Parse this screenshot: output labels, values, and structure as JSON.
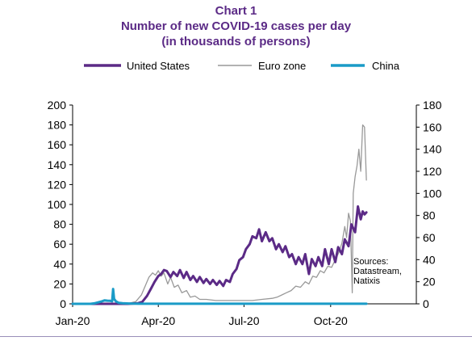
{
  "chart_data": {
    "type": "line",
    "title": "Chart 1",
    "subtitle": "Number of new COVID-19 cases per day",
    "subtitle2": "(in thousands of persons)",
    "legend_position": "top",
    "x_ticks": [
      "Jan-20",
      "Apr-20",
      "Jul-20",
      "Oct-20"
    ],
    "x_tick_dates": [
      "2020-01-01",
      "2020-04-01",
      "2020-07-01",
      "2020-10-01"
    ],
    "x_range": [
      "2020-01-01",
      "2020-12-31"
    ],
    "y_left": {
      "min": 0,
      "max": 200,
      "ticks": [
        0,
        20,
        40,
        60,
        80,
        100,
        120,
        140,
        160,
        180,
        200
      ]
    },
    "y_right": {
      "min": 0,
      "max": 180,
      "ticks": [
        0,
        20,
        40,
        60,
        80,
        100,
        120,
        140,
        160,
        180
      ]
    },
    "annotation": [
      "Sources:",
      "Datastream,",
      "Natixis"
    ],
    "series": [
      {
        "name": "United States",
        "axis": "left",
        "color": "#5b2a86",
        "points": [
          [
            "2020-01-01",
            0
          ],
          [
            "2020-02-15",
            0
          ],
          [
            "2020-02-29",
            0
          ],
          [
            "2020-03-10",
            0.5
          ],
          [
            "2020-03-15",
            2
          ],
          [
            "2020-03-20",
            8
          ],
          [
            "2020-03-24",
            15
          ],
          [
            "2020-03-28",
            22
          ],
          [
            "2020-04-01",
            28
          ],
          [
            "2020-04-04",
            30
          ],
          [
            "2020-04-07",
            34
          ],
          [
            "2020-04-10",
            33
          ],
          [
            "2020-04-14",
            27
          ],
          [
            "2020-04-17",
            32
          ],
          [
            "2020-04-21",
            28
          ],
          [
            "2020-04-24",
            34
          ],
          [
            "2020-04-28",
            26
          ],
          [
            "2020-05-01",
            32
          ],
          [
            "2020-05-05",
            24
          ],
          [
            "2020-05-08",
            28
          ],
          [
            "2020-05-12",
            22
          ],
          [
            "2020-05-15",
            27
          ],
          [
            "2020-05-19",
            21
          ],
          [
            "2020-05-22",
            25
          ],
          [
            "2020-05-26",
            20
          ],
          [
            "2020-05-29",
            24
          ],
          [
            "2020-06-02",
            19
          ],
          [
            "2020-06-05",
            23
          ],
          [
            "2020-06-09",
            18
          ],
          [
            "2020-06-12",
            24
          ],
          [
            "2020-06-16",
            22
          ],
          [
            "2020-06-19",
            30
          ],
          [
            "2020-06-23",
            35
          ],
          [
            "2020-06-26",
            44
          ],
          [
            "2020-06-30",
            47
          ],
          [
            "2020-07-03",
            55
          ],
          [
            "2020-07-07",
            60
          ],
          [
            "2020-07-10",
            68
          ],
          [
            "2020-07-14",
            66
          ],
          [
            "2020-07-17",
            75
          ],
          [
            "2020-07-20",
            63
          ],
          [
            "2020-07-24",
            72
          ],
          [
            "2020-07-28",
            63
          ],
          [
            "2020-07-31",
            66
          ],
          [
            "2020-08-04",
            55
          ],
          [
            "2020-08-07",
            60
          ],
          [
            "2020-08-11",
            52
          ],
          [
            "2020-08-14",
            58
          ],
          [
            "2020-08-18",
            47
          ],
          [
            "2020-08-21",
            50
          ],
          [
            "2020-08-25",
            40
          ],
          [
            "2020-08-28",
            47
          ],
          [
            "2020-09-01",
            40
          ],
          [
            "2020-09-04",
            50
          ],
          [
            "2020-09-08",
            30
          ],
          [
            "2020-09-11",
            45
          ],
          [
            "2020-09-15",
            38
          ],
          [
            "2020-09-18",
            47
          ],
          [
            "2020-09-22",
            38
          ],
          [
            "2020-09-25",
            55
          ],
          [
            "2020-09-29",
            40
          ],
          [
            "2020-10-02",
            55
          ],
          [
            "2020-10-06",
            42
          ],
          [
            "2020-10-09",
            57
          ],
          [
            "2020-10-13",
            50
          ],
          [
            "2020-10-16",
            65
          ],
          [
            "2020-10-20",
            58
          ],
          [
            "2020-10-23",
            80
          ],
          [
            "2020-10-27",
            72
          ],
          [
            "2020-10-30",
            98
          ],
          [
            "2020-11-02",
            85
          ],
          [
            "2020-11-04",
            93
          ],
          [
            "2020-11-06",
            90
          ],
          [
            "2020-11-08",
            92
          ]
        ]
      },
      {
        "name": "Euro zone",
        "axis": "right",
        "color": "#999999",
        "points": [
          [
            "2020-01-01",
            0
          ],
          [
            "2020-02-20",
            0
          ],
          [
            "2020-03-01",
            0.5
          ],
          [
            "2020-03-08",
            2
          ],
          [
            "2020-03-14",
            8
          ],
          [
            "2020-03-18",
            16
          ],
          [
            "2020-03-22",
            24
          ],
          [
            "2020-03-26",
            28
          ],
          [
            "2020-03-29",
            26
          ],
          [
            "2020-04-01",
            30
          ],
          [
            "2020-04-04",
            25
          ],
          [
            "2020-04-07",
            28
          ],
          [
            "2020-04-11",
            18
          ],
          [
            "2020-04-14",
            24
          ],
          [
            "2020-04-18",
            15
          ],
          [
            "2020-04-22",
            17
          ],
          [
            "2020-04-26",
            10
          ],
          [
            "2020-05-01",
            12
          ],
          [
            "2020-05-05",
            6
          ],
          [
            "2020-05-10",
            7
          ],
          [
            "2020-05-15",
            4
          ],
          [
            "2020-05-22",
            4
          ],
          [
            "2020-06-01",
            3
          ],
          [
            "2020-06-10",
            3
          ],
          [
            "2020-06-20",
            3
          ],
          [
            "2020-07-01",
            3
          ],
          [
            "2020-07-10",
            3
          ],
          [
            "2020-07-20",
            4
          ],
          [
            "2020-07-31",
            5
          ],
          [
            "2020-08-05",
            6
          ],
          [
            "2020-08-10",
            8
          ],
          [
            "2020-08-15",
            10
          ],
          [
            "2020-08-20",
            12
          ],
          [
            "2020-08-25",
            16
          ],
          [
            "2020-08-30",
            15
          ],
          [
            "2020-09-04",
            20
          ],
          [
            "2020-09-08",
            18
          ],
          [
            "2020-09-12",
            25
          ],
          [
            "2020-09-16",
            24
          ],
          [
            "2020-09-20",
            30
          ],
          [
            "2020-09-24",
            28
          ],
          [
            "2020-09-28",
            34
          ],
          [
            "2020-10-02",
            33
          ],
          [
            "2020-10-06",
            40
          ],
          [
            "2020-10-10",
            47
          ],
          [
            "2020-10-13",
            55
          ],
          [
            "2020-10-16",
            70
          ],
          [
            "2020-10-18",
            60
          ],
          [
            "2020-10-20",
            82
          ],
          [
            "2020-10-22",
            75
          ],
          [
            "2020-10-24",
            10
          ],
          [
            "2020-10-25",
            100
          ],
          [
            "2020-10-27",
            115
          ],
          [
            "2020-10-29",
            125
          ],
          [
            "2020-10-31",
            140
          ],
          [
            "2020-11-02",
            120
          ],
          [
            "2020-11-04",
            162
          ],
          [
            "2020-11-06",
            160
          ],
          [
            "2020-11-08",
            112
          ]
        ]
      },
      {
        "name": "China",
        "axis": "left",
        "color": "#1a9bc7",
        "points": [
          [
            "2020-01-01",
            0
          ],
          [
            "2020-01-20",
            0
          ],
          [
            "2020-01-24",
            0.5
          ],
          [
            "2020-01-28",
            1.5
          ],
          [
            "2020-02-01",
            2.5
          ],
          [
            "2020-02-04",
            3.5
          ],
          [
            "2020-02-07",
            3.2
          ],
          [
            "2020-02-10",
            3
          ],
          [
            "2020-02-12",
            2.5
          ],
          [
            "2020-02-13",
            15
          ],
          [
            "2020-02-14",
            5
          ],
          [
            "2020-02-16",
            2.5
          ],
          [
            "2020-02-19",
            1
          ],
          [
            "2020-02-23",
            0.6
          ],
          [
            "2020-03-01",
            0.3
          ],
          [
            "2020-03-10",
            0.1
          ],
          [
            "2020-04-01",
            0.05
          ],
          [
            "2020-11-08",
            0.05
          ]
        ]
      }
    ]
  }
}
